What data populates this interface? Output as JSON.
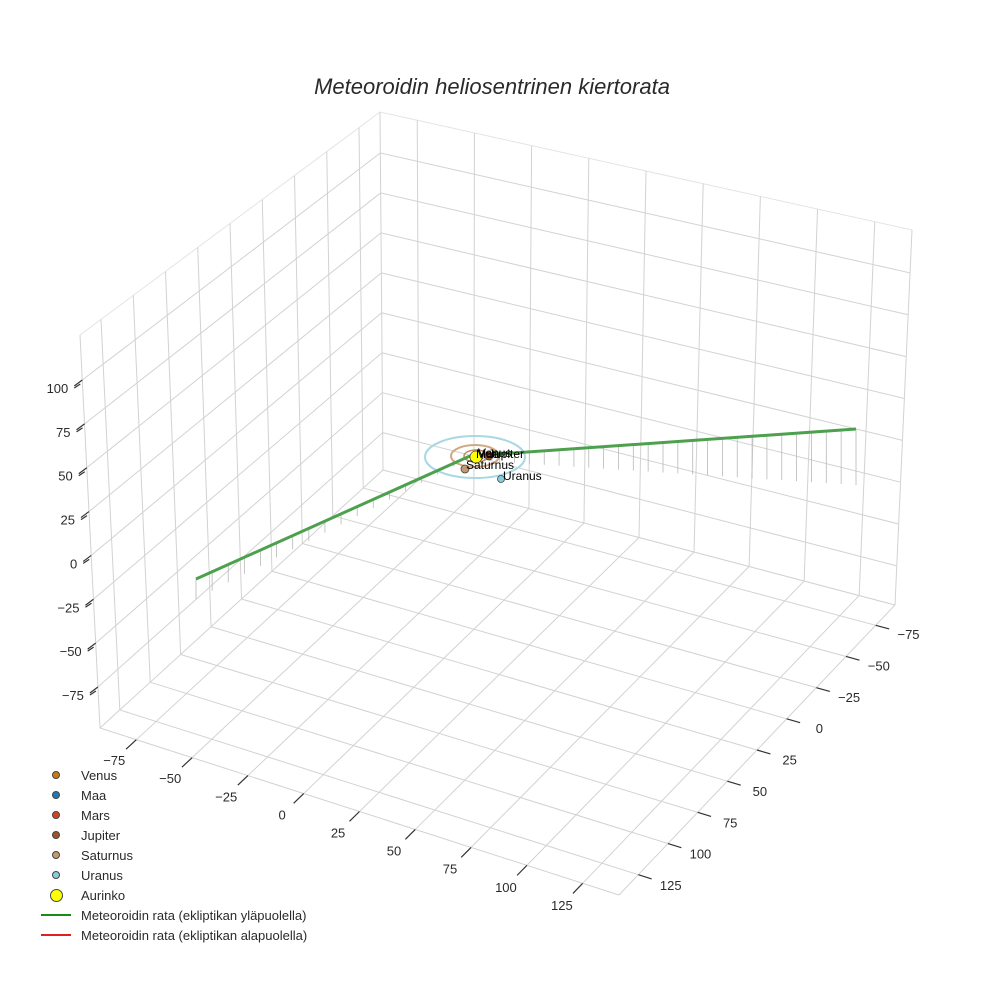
{
  "chart_data": {
    "type": "scatter3d",
    "title": "Meteoroidin heliosentrinen kiertorata",
    "xlabel": "",
    "ylabel": "",
    "zlabel": "",
    "x_ticks": [
      -75,
      -50,
      -25,
      0,
      25,
      50,
      75,
      100,
      125
    ],
    "y_ticks": [
      125,
      100,
      75,
      50,
      25,
      0,
      -25,
      -50,
      -75
    ],
    "z_ticks": [
      100,
      75,
      50,
      25,
      0,
      -25,
      -50,
      -75
    ],
    "xlim": [
      -90,
      135
    ],
    "ylim": [
      -90,
      135
    ],
    "zlim": [
      -90,
      130
    ],
    "grid": true,
    "legend_position": "lower left",
    "series": [
      {
        "name": "Venus",
        "type": "point",
        "color": "#c97a12",
        "x": 0.7,
        "y": 0.0,
        "z": 0
      },
      {
        "name": "Maa",
        "type": "point",
        "color": "#1f77b4",
        "x": 1.0,
        "y": 0.0,
        "z": 0
      },
      {
        "name": "Mars",
        "type": "point",
        "color": "#d2461e",
        "x": 1.5,
        "y": 0.0,
        "z": 0
      },
      {
        "name": "Jupiter",
        "type": "point",
        "color": "#a0522d",
        "x": 5.2,
        "y": 0.0,
        "z": 0
      },
      {
        "name": "Saturnus",
        "type": "point",
        "color": "#c49a6c",
        "x": 9.5,
        "y": 0.0,
        "z": 0
      },
      {
        "name": "Uranus",
        "type": "point",
        "color": "#87cedb",
        "x": 19.2,
        "y": 0.0,
        "z": 0
      },
      {
        "name": "Aurinko",
        "type": "point",
        "color": "#ffff00",
        "x": 0,
        "y": 0,
        "z": 0
      },
      {
        "name": "Meteoroidin rata (ekliptikan yläpuolella)",
        "type": "line",
        "color": "#2e9a2e",
        "points": [
          [
            -75,
            80,
            45
          ],
          [
            0,
            0,
            0
          ],
          [
            20,
            -90,
            20
          ]
        ]
      },
      {
        "name": "Meteoroidin rata (ekliptikan alapuolella)",
        "type": "line",
        "color": "#e02020",
        "points": []
      }
    ],
    "orbits": [
      {
        "name": "Saturnus-orbit",
        "color": "#c49a6c"
      },
      {
        "name": "Uranus-orbit",
        "color": "#9fd3e0"
      }
    ]
  },
  "title": "Meteoroidin heliosentrinen kiertorata",
  "axes": {
    "z_labels": [
      "100",
      "75",
      "50",
      "25",
      "0",
      "−25",
      "−50",
      "−75"
    ],
    "x_labels": [
      "−75",
      "−50",
      "−25",
      "0",
      "25",
      "50",
      "75",
      "100",
      "125"
    ],
    "y_labels": [
      "−75",
      "−50",
      "−25",
      "0",
      "25",
      "50",
      "75",
      "100",
      "125"
    ]
  },
  "annotations": {
    "maa": "Maa",
    "venus": "Venus",
    "jupiter": "Jupiter",
    "saturnus": "Saturnus",
    "uranus": "Uranus"
  },
  "legend": [
    {
      "label": "Venus",
      "kind": "dot",
      "color": "#c97a12"
    },
    {
      "label": "Maa",
      "kind": "dot",
      "color": "#1f77b4"
    },
    {
      "label": "Mars",
      "kind": "dot",
      "color": "#d2461e"
    },
    {
      "label": "Jupiter",
      "kind": "dot",
      "color": "#a0522d"
    },
    {
      "label": "Saturnus",
      "kind": "dot",
      "color": "#c49a6c"
    },
    {
      "label": "Uranus",
      "kind": "dot",
      "color": "#87cedb"
    },
    {
      "label": "Aurinko",
      "kind": "bigdot",
      "color": "#ffff00"
    },
    {
      "label": "Meteoroidin rata (ekliptikan yläpuolella)",
      "kind": "line",
      "color": "#1a8a1a"
    },
    {
      "label": "Meteoroidin rata (ekliptikan alapuolella)",
      "kind": "line",
      "color": "#e02020"
    }
  ]
}
